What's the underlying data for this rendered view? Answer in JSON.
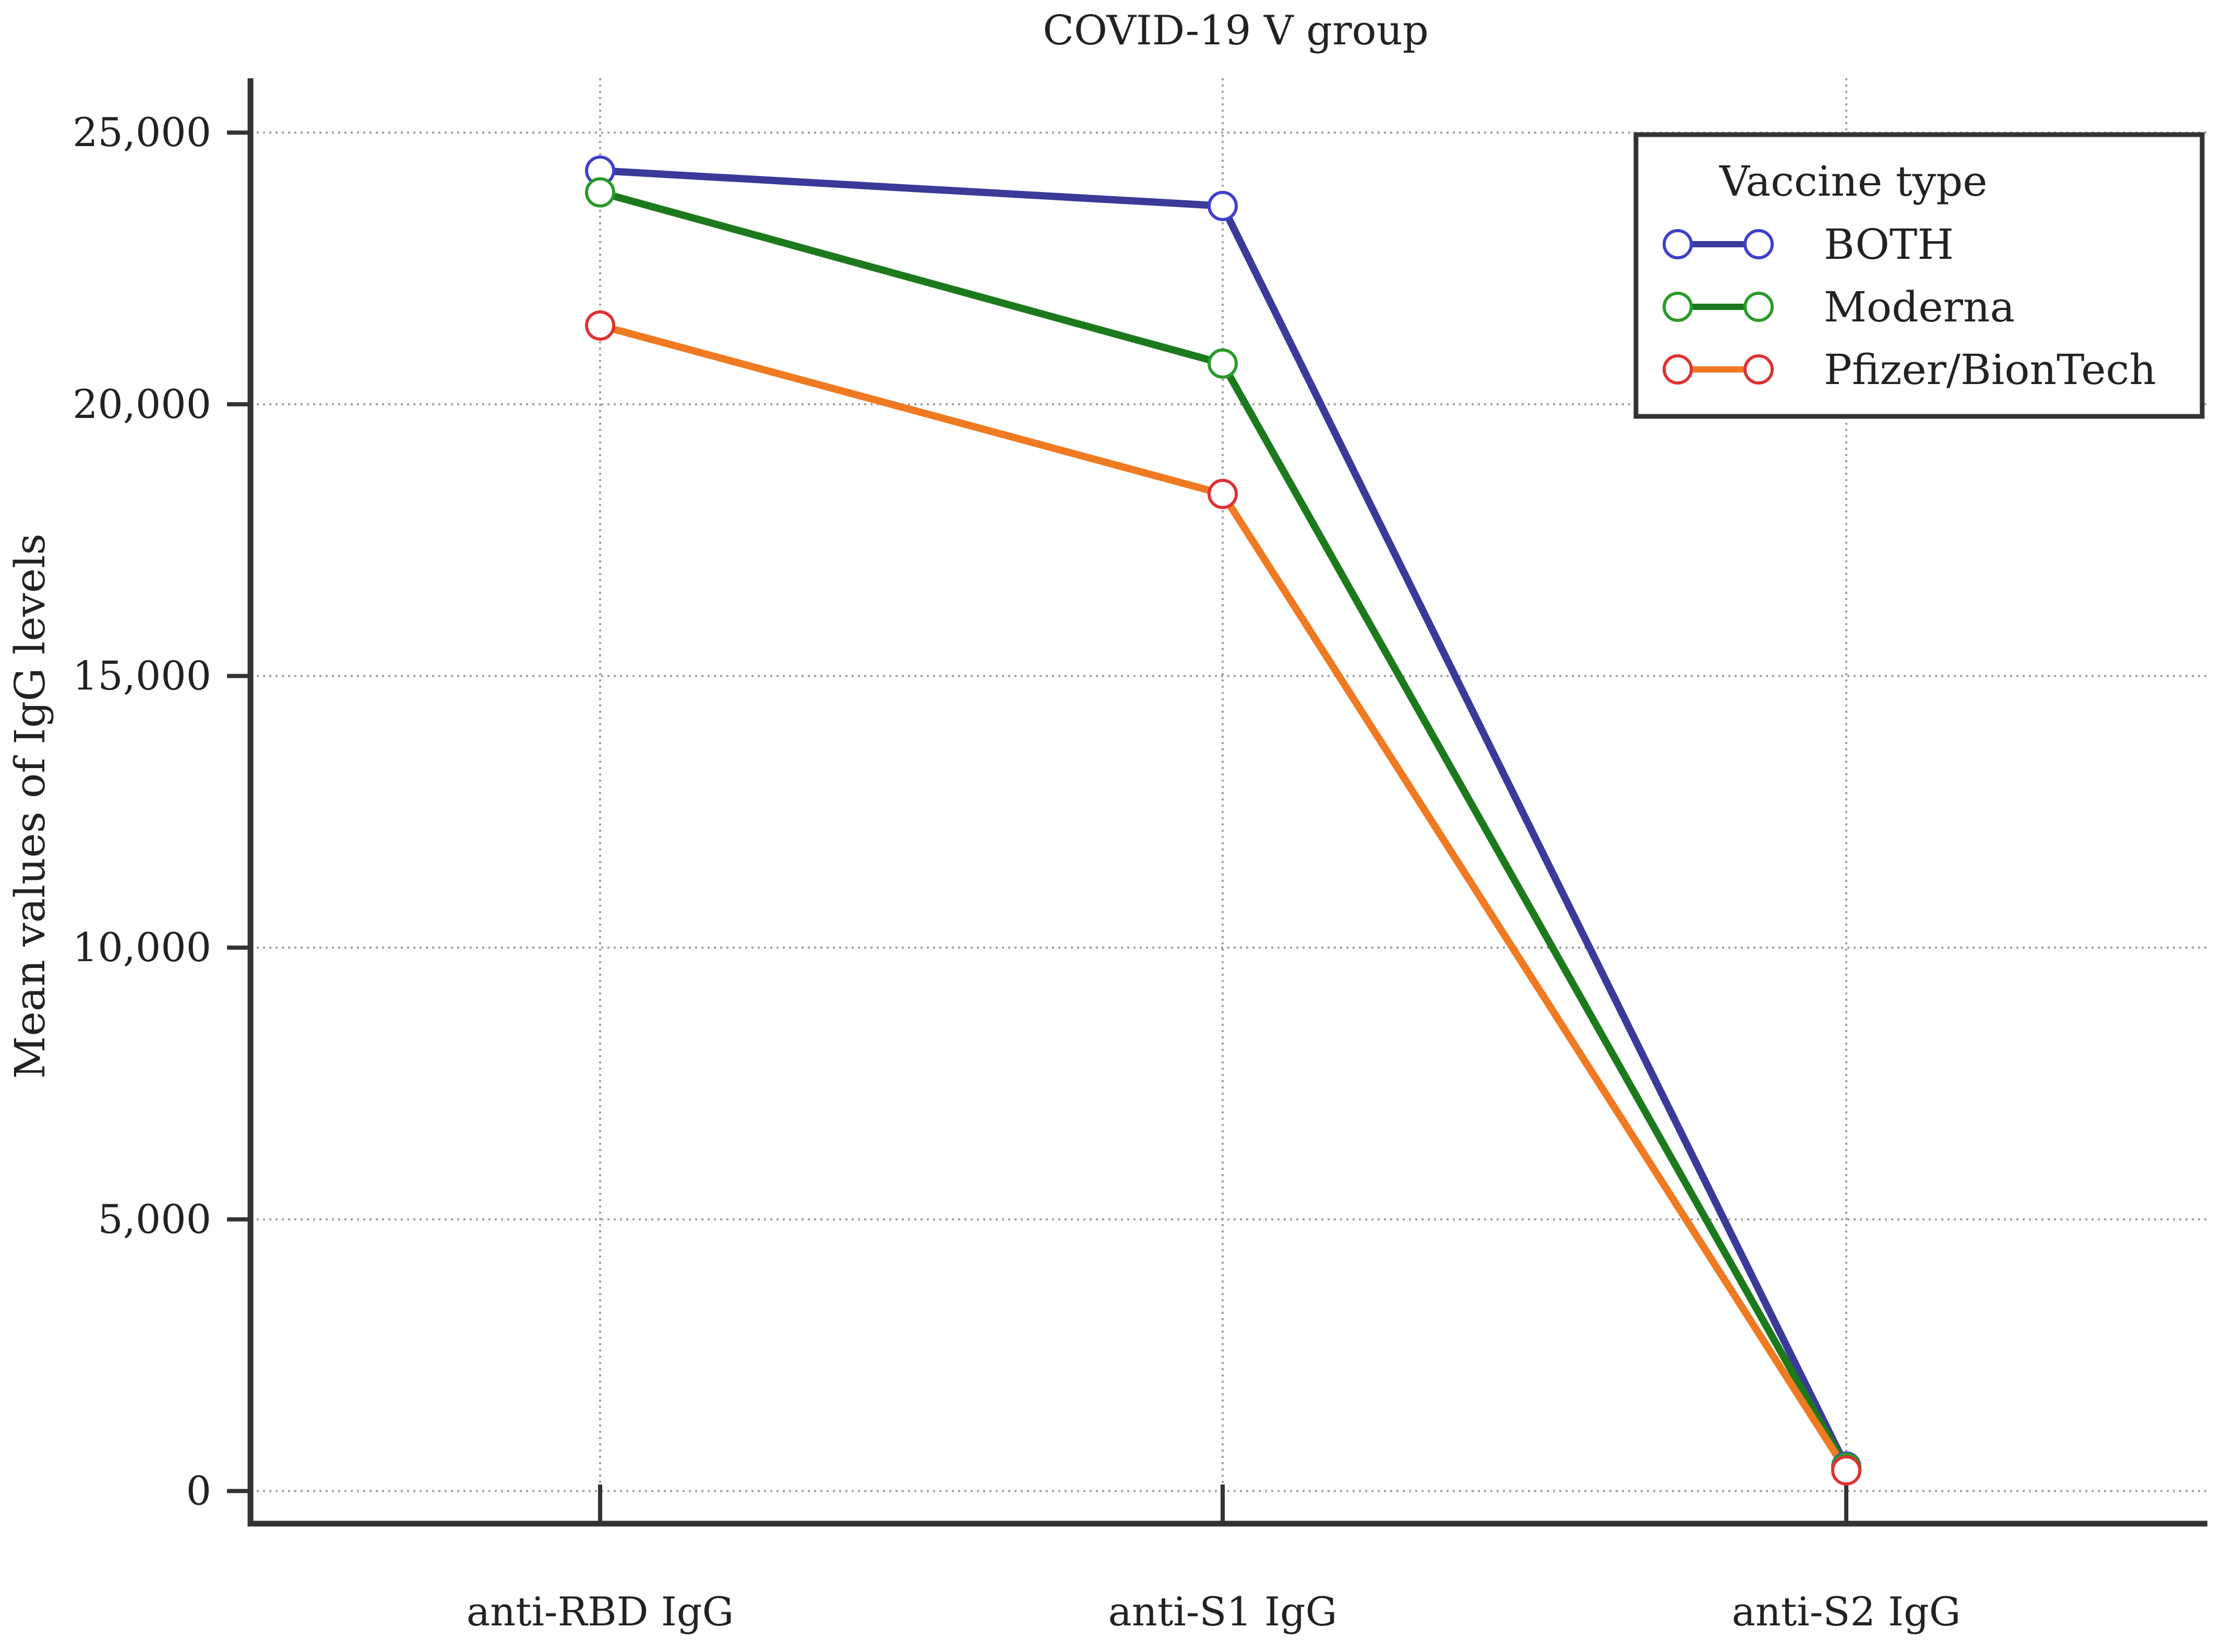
{
  "chart_data": {
    "type": "line",
    "title": "COVID-19 V group",
    "xlabel": "",
    "ylabel": "Mean values of IgG levels",
    "categories": [
      "anti-RBD IgG",
      "anti-S1 IgG",
      "anti-S2 IgG"
    ],
    "ylim": [
      -600,
      26000
    ],
    "yticks": [
      0,
      5000,
      10000,
      15000,
      20000,
      25000
    ],
    "ytick_labels": [
      "0",
      "5,000",
      "10,000",
      "15,000",
      "20,000",
      "25,000"
    ],
    "grid": true,
    "legend": {
      "title": "Vaccine type",
      "position": "top-right"
    },
    "series": [
      {
        "name": "BOTH",
        "color": "#3a3a9a",
        "values": [
          24300,
          23650,
          450
        ]
      },
      {
        "name": "Moderna",
        "color": "#1c7a1c",
        "values": [
          23900,
          20750,
          430
        ]
      },
      {
        "name": "Pfizer/BionTech",
        "color": "#ef7a22",
        "values": [
          21450,
          18350,
          380
        ]
      }
    ],
    "marker_edge_colors": [
      "#4040cc",
      "#2a9a2a",
      "#dd3333"
    ]
  }
}
